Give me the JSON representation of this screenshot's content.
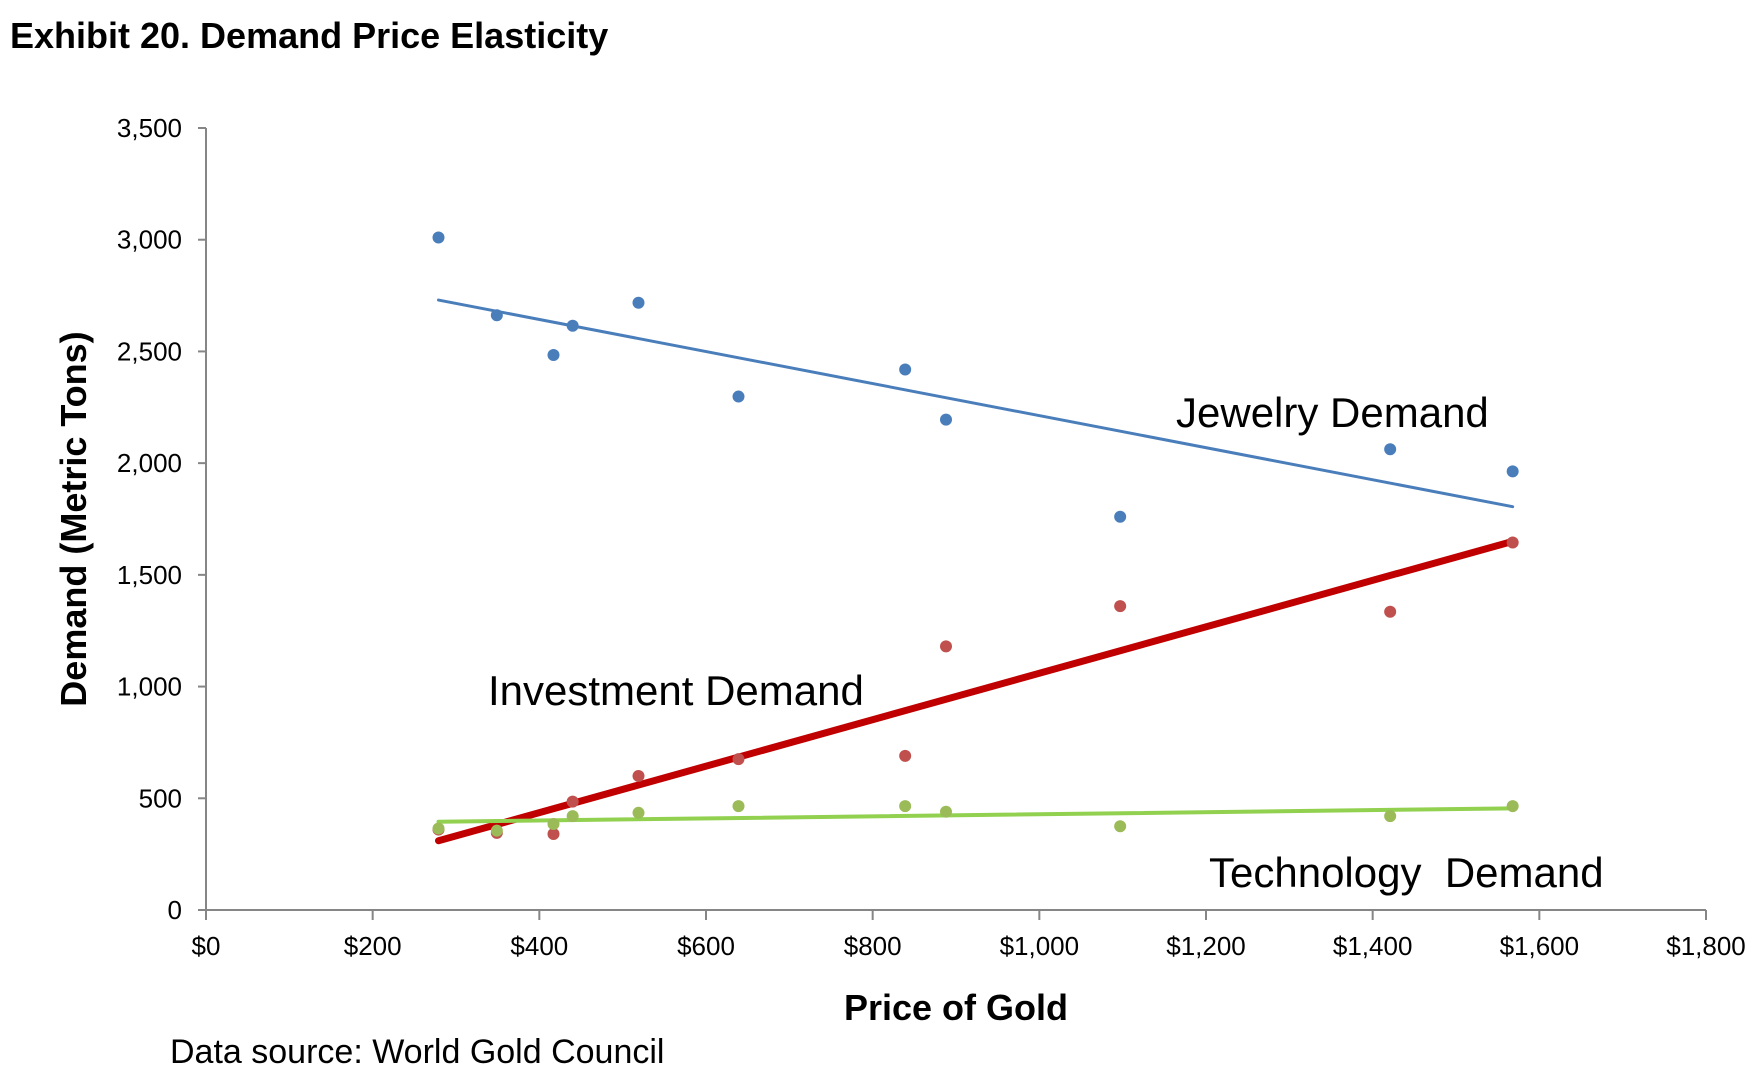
{
  "chart_data": {
    "type": "scatter",
    "title": "Exhibit 20. Demand Price Elasticity",
    "xlabel": "Price of Gold",
    "ylabel": "Demand (Metric Tons)",
    "source": "Data source: World Gold Council",
    "xlim": [
      0,
      1800
    ],
    "ylim": [
      0,
      3500
    ],
    "x_ticks": [
      0,
      200,
      400,
      600,
      800,
      1000,
      1200,
      1400,
      1600,
      1800
    ],
    "x_tick_labels": [
      "$0",
      "$200",
      "$400",
      "$600",
      "$800",
      "$1,000",
      "$1,200",
      "$1,400",
      "$1,600",
      "$1,800"
    ],
    "y_ticks": [
      0,
      500,
      1000,
      1500,
      2000,
      2500,
      3000,
      3500
    ],
    "y_tick_labels": [
      "0",
      "500",
      "1,000",
      "1,500",
      "2,000",
      "2,500",
      "3,000",
      "3,500"
    ],
    "grid": false,
    "legend": "none",
    "annotations": [
      "Jewelry Demand",
      "Investment Demand",
      "Technology  Demand"
    ],
    "series": [
      {
        "name": "Jewelry Demand",
        "color": "#4a7ebb",
        "x": [
          279,
          349,
          417,
          440,
          519,
          639,
          839,
          888,
          1097,
          1421,
          1568
        ],
        "y": [
          3010,
          2662,
          2484,
          2615,
          2718,
          2298,
          2419,
          2195,
          1760,
          2062,
          1963
        ],
        "trendline": {
          "x": [
            279,
            1568
          ],
          "y": [
            2730,
            1805
          ],
          "width": 3
        }
      },
      {
        "name": "Investment Demand",
        "color": "#c0504d",
        "trend_color": "#c00000",
        "x": [
          279,
          349,
          417,
          440,
          519,
          639,
          839,
          888,
          1097,
          1421,
          1568
        ],
        "y": [
          360,
          345,
          340,
          485,
          600,
          675,
          690,
          1180,
          1360,
          1335,
          1645
        ],
        "trendline": {
          "x": [
            279,
            1568
          ],
          "y": [
            310,
            1650
          ],
          "width": 7
        }
      },
      {
        "name": "Technology  Demand",
        "color": "#9bbb59",
        "trend_color": "#92d050",
        "x": [
          279,
          349,
          417,
          440,
          519,
          639,
          839,
          888,
          1097,
          1421,
          1568
        ],
        "y": [
          365,
          355,
          385,
          420,
          435,
          465,
          465,
          440,
          375,
          420,
          465
        ],
        "trendline": {
          "x": [
            279,
            1568
          ],
          "y": [
            395,
            455
          ],
          "width": 4
        }
      }
    ]
  }
}
